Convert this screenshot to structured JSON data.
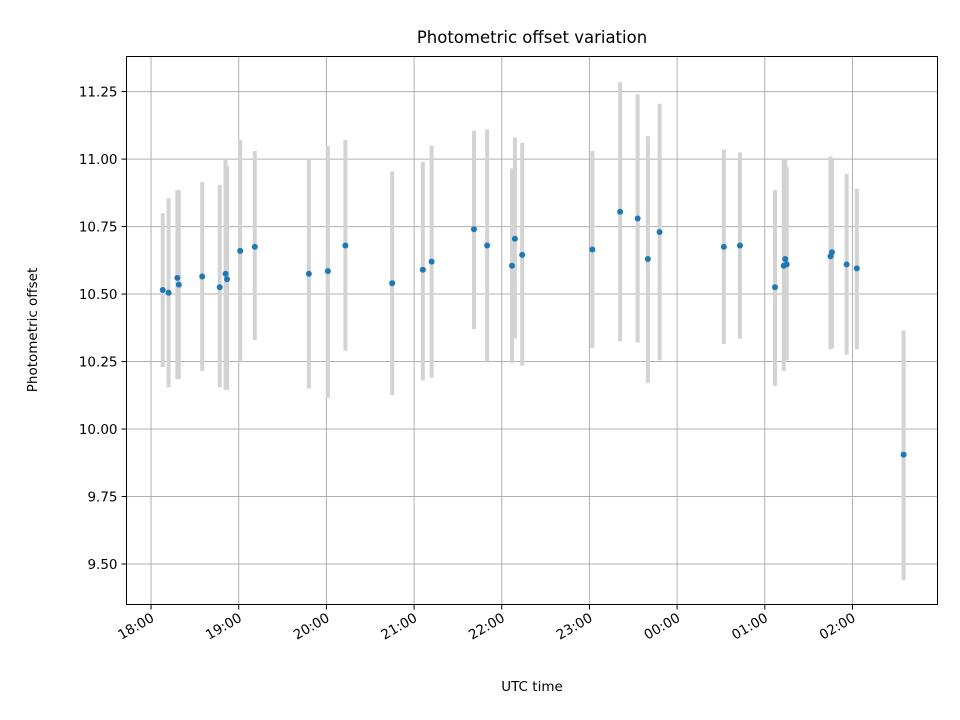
{
  "chart_data": {
    "type": "scatter",
    "title": "Photometric offset variation",
    "xlabel": "UTC time",
    "ylabel": "Photometric offset",
    "grid": true,
    "x_start": "18:00",
    "x_unit": "hours since 18:00 UTC",
    "xlim": [
      -0.28,
      8.97
    ],
    "ylim": [
      9.35,
      11.38
    ],
    "xticks": [
      {
        "value": 0,
        "label": "18:00"
      },
      {
        "value": 1,
        "label": "19:00"
      },
      {
        "value": 2,
        "label": "20:00"
      },
      {
        "value": 3,
        "label": "21:00"
      },
      {
        "value": 4,
        "label": "22:00"
      },
      {
        "value": 5,
        "label": "23:00"
      },
      {
        "value": 6,
        "label": "00:00"
      },
      {
        "value": 7,
        "label": "01:00"
      },
      {
        "value": 8,
        "label": "02:00"
      }
    ],
    "yticks": [
      {
        "value": 9.5,
        "label": "9.50"
      },
      {
        "value": 9.75,
        "label": "9.75"
      },
      {
        "value": 10.0,
        "label": "10.00"
      },
      {
        "value": 10.25,
        "label": "10.25"
      },
      {
        "value": 10.5,
        "label": "10.50"
      },
      {
        "value": 10.75,
        "label": "10.75"
      },
      {
        "value": 11.0,
        "label": "11.00"
      },
      {
        "value": 11.25,
        "label": "11.25"
      }
    ],
    "points": [
      {
        "t": "18:08",
        "y": 10.515,
        "lo": 10.23,
        "hi": 10.8
      },
      {
        "t": "18:12",
        "y": 10.505,
        "lo": 10.155,
        "hi": 10.855
      },
      {
        "t": "18:18",
        "y": 10.56,
        "lo": 10.185,
        "hi": 10.885
      },
      {
        "t": "18:19",
        "y": 10.535,
        "lo": 10.185,
        "hi": 10.885
      },
      {
        "t": "18:35",
        "y": 10.565,
        "lo": 10.215,
        "hi": 10.915
      },
      {
        "t": "18:47",
        "y": 10.525,
        "lo": 10.155,
        "hi": 10.905
      },
      {
        "t": "18:51",
        "y": 10.575,
        "lo": 10.145,
        "hi": 11.0
      },
      {
        "t": "18:52",
        "y": 10.555,
        "lo": 10.145,
        "hi": 10.975
      },
      {
        "t": "19:01",
        "y": 10.66,
        "lo": 10.25,
        "hi": 11.07
      },
      {
        "t": "19:11",
        "y": 10.675,
        "lo": 10.33,
        "hi": 11.03
      },
      {
        "t": "19:48",
        "y": 10.575,
        "lo": 10.15,
        "hi": 11.0
      },
      {
        "t": "20:01",
        "y": 10.585,
        "lo": 10.115,
        "hi": 11.05
      },
      {
        "t": "20:13",
        "y": 10.68,
        "lo": 10.29,
        "hi": 11.07
      },
      {
        "t": "20:45",
        "y": 10.54,
        "lo": 10.125,
        "hi": 10.955
      },
      {
        "t": "21:06",
        "y": 10.59,
        "lo": 10.18,
        "hi": 10.99
      },
      {
        "t": "21:12",
        "y": 10.62,
        "lo": 10.19,
        "hi": 11.05
      },
      {
        "t": "21:41",
        "y": 10.74,
        "lo": 10.37,
        "hi": 11.105
      },
      {
        "t": "21:50",
        "y": 10.68,
        "lo": 10.25,
        "hi": 11.11
      },
      {
        "t": "22:07",
        "y": 10.605,
        "lo": 10.245,
        "hi": 10.965
      },
      {
        "t": "22:09",
        "y": 10.705,
        "lo": 10.335,
        "hi": 11.08
      },
      {
        "t": "22:14",
        "y": 10.645,
        "lo": 10.235,
        "hi": 11.06
      },
      {
        "t": "23:02",
        "y": 10.665,
        "lo": 10.3,
        "hi": 11.03
      },
      {
        "t": "23:21",
        "y": 10.805,
        "lo": 10.325,
        "hi": 11.285
      },
      {
        "t": "23:33",
        "y": 10.78,
        "lo": 10.32,
        "hi": 11.24
      },
      {
        "t": "23:40",
        "y": 10.63,
        "lo": 10.17,
        "hi": 11.085
      },
      {
        "t": "23:48",
        "y": 10.73,
        "lo": 10.255,
        "hi": 11.205
      },
      {
        "t": "00:32",
        "y": 10.675,
        "lo": 10.315,
        "hi": 11.035
      },
      {
        "t": "00:43",
        "y": 10.68,
        "lo": 10.335,
        "hi": 11.025
      },
      {
        "t": "01:07",
        "y": 10.525,
        "lo": 10.16,
        "hi": 10.885
      },
      {
        "t": "01:13",
        "y": 10.605,
        "lo": 10.215,
        "hi": 11.0
      },
      {
        "t": "01:14",
        "y": 10.63,
        "lo": 10.255,
        "hi": 11.0
      },
      {
        "t": "01:15",
        "y": 10.61,
        "lo": 10.255,
        "hi": 10.97
      },
      {
        "t": "01:45",
        "y": 10.64,
        "lo": 10.295,
        "hi": 11.01
      },
      {
        "t": "01:46",
        "y": 10.655,
        "lo": 10.3,
        "hi": 11.0
      },
      {
        "t": "01:56",
        "y": 10.61,
        "lo": 10.275,
        "hi": 10.945
      },
      {
        "t": "02:03",
        "y": 10.595,
        "lo": 10.295,
        "hi": 10.89
      },
      {
        "t": "02:35",
        "y": 9.905,
        "lo": 9.44,
        "hi": 10.365
      }
    ]
  }
}
